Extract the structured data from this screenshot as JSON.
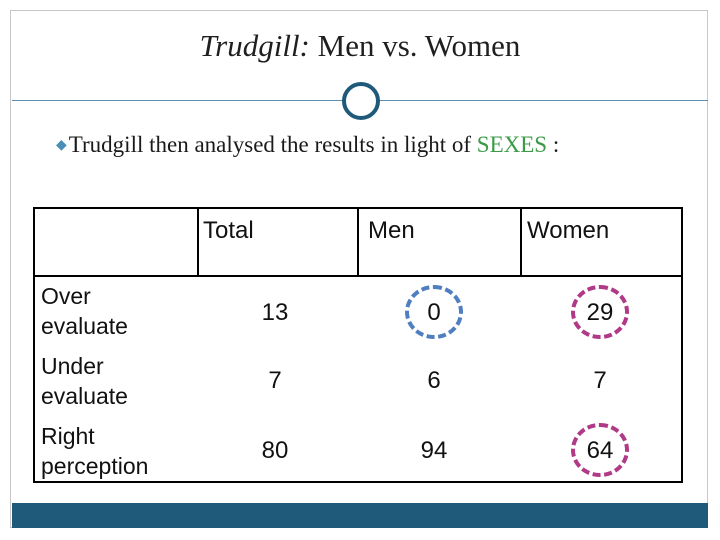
{
  "header": {
    "title_emphasis": "Trudgill:",
    "title_rest": "Men vs. Women"
  },
  "bullet": {
    "before": "Trudgill then analysed the results in light of",
    "highlight": "SEXES",
    "after": ":"
  },
  "table": {
    "columns": [
      "Total",
      "Men",
      "Women"
    ],
    "rows": [
      {
        "label": "Over evaluate",
        "values": [
          13,
          0,
          29
        ]
      },
      {
        "label": "Under evaluate",
        "values": [
          7,
          6,
          7
        ]
      },
      {
        "label": "Right perception",
        "values": [
          80,
          94,
          64
        ]
      }
    ]
  }
}
